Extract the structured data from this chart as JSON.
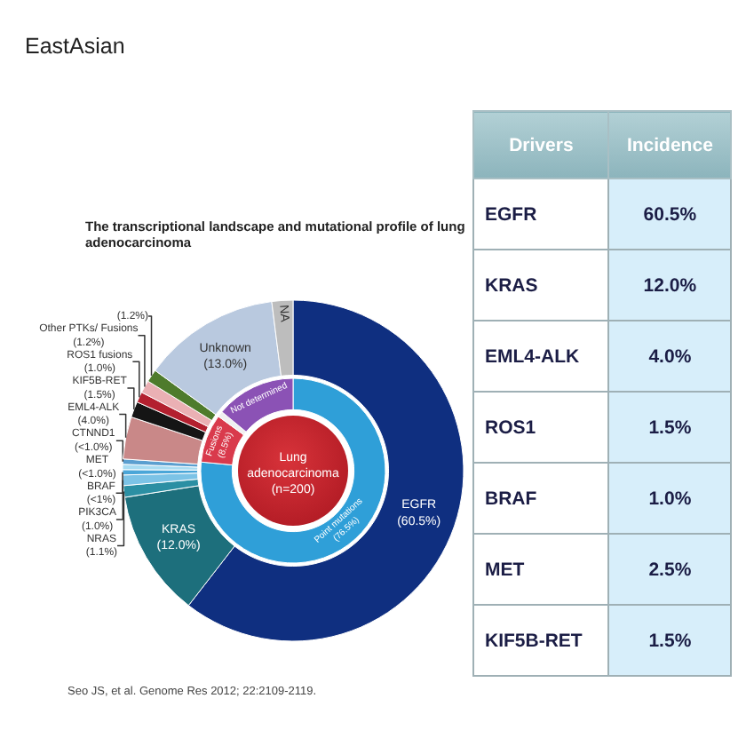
{
  "chart_data": [
    {
      "type": "donut",
      "title": "EastAsian",
      "subtitle": "The transcriptional landscape and mutational profile of lung adenocarcinoma",
      "categories": [
        "EGFR",
        "KRAS",
        "NRAS",
        "PIK3CA",
        "BRAF",
        "MET",
        "CTNND1",
        "EML4-ALK",
        "KIF5B-RET",
        "ROS1 fusions",
        "Other PTKs/ Fusions",
        null,
        "Unknown",
        "NA"
      ],
      "values": [
        60.5,
        12.0,
        1.1,
        1.0,
        0.5,
        0.5,
        0.5,
        4.0,
        1.5,
        1.0,
        1.2,
        1.2,
        13.0,
        2.0
      ],
      "colors": [
        "#0f2f80",
        "#1d6f7c",
        "#2b8fa3",
        "#7cc3e6",
        "#4aa6d8",
        "#a9dcf2",
        "#5b9fd0",
        "#c98888",
        "#151515",
        "#b3202f",
        "#eab0b4",
        "#4e7b2c",
        "#b9c9df",
        "#bdbdbd"
      ],
      "value_labels": [
        "(60.5%)",
        "(12.0%)",
        "(1.1%)",
        "(1.0%)",
        "(<1%)",
        "(<1.0%)",
        "(<1.0%)",
        "(4.0%)",
        "(1.5%)",
        "(1.0%)",
        "(1.2%)",
        "(1.2%)",
        "(13.0%)",
        null
      ],
      "annotations": [
        "Seo JS, et al. Genome Res 2012; 22:2109-2119."
      ]
    },
    {
      "type": "donut",
      "title": "Lung adenocarcinoma (n=200)",
      "categories": [
        "Point mutations",
        "Fusions",
        null,
        "Not determined"
      ],
      "values": [
        76.5,
        8.5,
        1.0,
        14.0
      ],
      "colors": [
        "#2f9fd8",
        "#d93a4c",
        "#f0f0f0",
        "#8b52b5"
      ],
      "value_labels": [
        "(76.5%)",
        "(8.5%)",
        null,
        null
      ]
    },
    {
      "type": "other",
      "xlabel": "Drivers",
      "ylabel": "Incidence",
      "categories": [
        "EGFR",
        "KRAS",
        "EML4-ALK",
        "ROS1",
        "BRAF",
        "MET",
        "KIF5B-RET"
      ],
      "values": [
        60.5,
        12.0,
        4.0,
        1.5,
        1.0,
        2.5,
        1.5
      ],
      "value_labels": [
        "60.5%",
        "12.0%",
        "4.0%",
        "1.5%",
        "1.0%",
        "2.5%",
        "1.5%"
      ]
    }
  ]
}
